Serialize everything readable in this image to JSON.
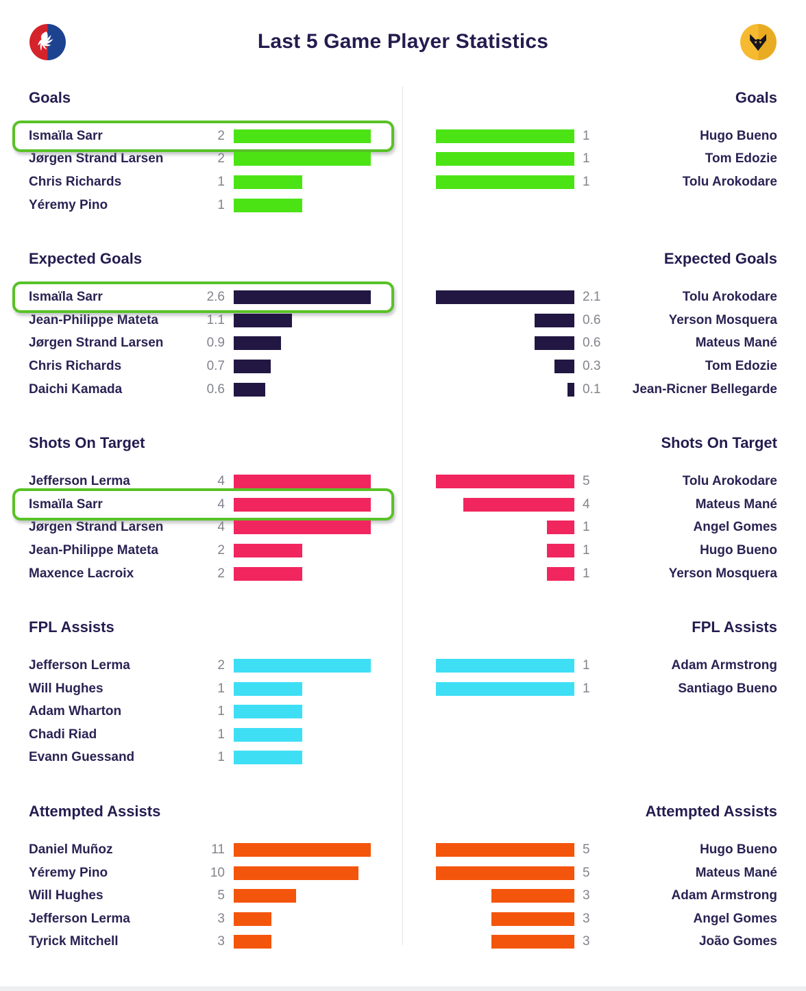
{
  "header": {
    "title": "Last 5 Game Player Statistics",
    "home_team": "Crystal Palace",
    "away_team": "Wolverhampton Wanderers"
  },
  "colors": {
    "title_text": "#241c4f",
    "player_name_text": "#2a2353",
    "value_text": "#82838c",
    "divider": "#e4e4e8",
    "highlight_border": "#58c226",
    "home_logo_red": "#d5232b",
    "home_logo_blue": "#1d4290",
    "away_logo_gold": "#f4b62c",
    "goals_bar": "#4ce315",
    "expected_goals_bar": "#211742",
    "shots_on_target_bar": "#f1265e",
    "fpl_assists_bar": "#3edff5",
    "attempted_assists_bar": "#f4550c"
  },
  "chart_data": [
    {
      "type": "bar",
      "title": "Goals",
      "bar_color": "#4ce315",
      "normalization": "per-side max, bars grow from centre outward",
      "left": {
        "team": "Crystal Palace",
        "rows": [
          {
            "player": "Ismaïla Sarr",
            "value": 2,
            "highlight": true
          },
          {
            "player": "Jørgen Strand Larsen",
            "value": 2
          },
          {
            "player": "Chris Richards",
            "value": 1
          },
          {
            "player": "Yéremy Pino",
            "value": 1
          }
        ]
      },
      "right": {
        "team": "Wolverhampton Wanderers",
        "rows": [
          {
            "player": "Hugo Bueno",
            "value": 1
          },
          {
            "player": "Tom Edozie",
            "value": 1
          },
          {
            "player": "Tolu Arokodare",
            "value": 1
          }
        ]
      }
    },
    {
      "type": "bar",
      "title": "Expected Goals",
      "bar_color": "#211742",
      "left": {
        "team": "Crystal Palace",
        "rows": [
          {
            "player": "Ismaïla Sarr",
            "value": 2.6,
            "highlight": true
          },
          {
            "player": "Jean-Philippe Mateta",
            "value": 1.1
          },
          {
            "player": "Jørgen Strand Larsen",
            "value": 0.9
          },
          {
            "player": "Chris Richards",
            "value": 0.7
          },
          {
            "player": "Daichi Kamada",
            "value": 0.6
          }
        ]
      },
      "right": {
        "team": "Wolverhampton Wanderers",
        "rows": [
          {
            "player": "Tolu Arokodare",
            "value": 2.1
          },
          {
            "player": "Yerson Mosquera",
            "value": 0.6
          },
          {
            "player": "Mateus Mané",
            "value": 0.6
          },
          {
            "player": "Tom Edozie",
            "value": 0.3
          },
          {
            "player": "Jean-Ricner Bellegarde",
            "value": 0.1
          }
        ]
      }
    },
    {
      "type": "bar",
      "title": "Shots On Target",
      "bar_color": "#f1265e",
      "left": {
        "team": "Crystal Palace",
        "rows": [
          {
            "player": "Jefferson Lerma",
            "value": 4
          },
          {
            "player": "Ismaïla Sarr",
            "value": 4,
            "highlight": true
          },
          {
            "player": "Jørgen Strand Larsen",
            "value": 4
          },
          {
            "player": "Jean-Philippe Mateta",
            "value": 2
          },
          {
            "player": "Maxence Lacroix",
            "value": 2
          }
        ]
      },
      "right": {
        "team": "Wolverhampton Wanderers",
        "rows": [
          {
            "player": "Tolu Arokodare",
            "value": 5
          },
          {
            "player": "Mateus Mané",
            "value": 4
          },
          {
            "player": "Angel Gomes",
            "value": 1
          },
          {
            "player": "Hugo Bueno",
            "value": 1
          },
          {
            "player": "Yerson Mosquera",
            "value": 1
          }
        ]
      }
    },
    {
      "type": "bar",
      "title": "FPL Assists",
      "bar_color": "#3edff5",
      "left": {
        "team": "Crystal Palace",
        "rows": [
          {
            "player": "Jefferson Lerma",
            "value": 2
          },
          {
            "player": "Will Hughes",
            "value": 1
          },
          {
            "player": "Adam Wharton",
            "value": 1
          },
          {
            "player": "Chadi Riad",
            "value": 1
          },
          {
            "player": "Evann Guessand",
            "value": 1
          }
        ]
      },
      "right": {
        "team": "Wolverhampton Wanderers",
        "rows": [
          {
            "player": "Adam Armstrong",
            "value": 1
          },
          {
            "player": "Santiago Bueno",
            "value": 1
          }
        ]
      }
    },
    {
      "type": "bar",
      "title": "Attempted Assists",
      "bar_color": "#f4550c",
      "left": {
        "team": "Crystal Palace",
        "rows": [
          {
            "player": "Daniel Muñoz",
            "value": 11
          },
          {
            "player": "Yéremy Pino",
            "value": 10
          },
          {
            "player": "Will Hughes",
            "value": 5
          },
          {
            "player": "Jefferson Lerma",
            "value": 3
          },
          {
            "player": "Tyrick Mitchell",
            "value": 3
          }
        ]
      },
      "right": {
        "team": "Wolverhampton Wanderers",
        "rows": [
          {
            "player": "Hugo Bueno",
            "value": 5
          },
          {
            "player": "Mateus Mané",
            "value": 5
          },
          {
            "player": "Adam Armstrong",
            "value": 3
          },
          {
            "player": "Angel Gomes",
            "value": 3
          },
          {
            "player": "João Gomes",
            "value": 3
          }
        ]
      }
    }
  ]
}
